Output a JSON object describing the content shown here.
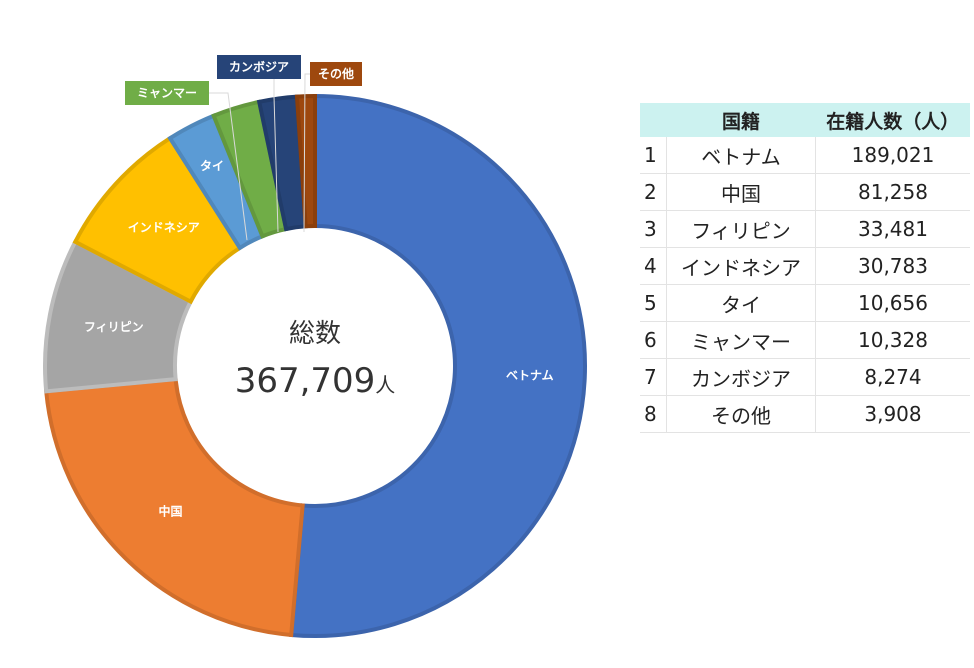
{
  "chart_data": {
    "type": "pie",
    "variant": "donut",
    "categories": [
      "ベトナム",
      "中国",
      "フィリピン",
      "インドネシア",
      "タイ",
      "ミャンマー",
      "カンボジア",
      "その他"
    ],
    "values": [
      189021,
      81258,
      33481,
      30783,
      10656,
      10328,
      8274,
      3908
    ],
    "colors": [
      "#4472c4",
      "#ed7d31",
      "#a5a5a5",
      "#ffc000",
      "#5b9bd5",
      "#70ad47",
      "#264478",
      "#9e480e"
    ],
    "center_title": "総数",
    "center_total": "367,709",
    "center_unit": "人",
    "callout_labels": [
      "ミャンマー",
      "カンボジア",
      "その他"
    ],
    "inside_labels": [
      "ベトナム",
      "中国",
      "フィリピン",
      "インドネシア",
      "タイ"
    ]
  },
  "table": {
    "headers": [
      "",
      "国籍",
      "在籍人数（人）"
    ],
    "rows": [
      {
        "rank": "1",
        "name": "ベトナム",
        "count": "189,021"
      },
      {
        "rank": "2",
        "name": "中国",
        "count": "81,258"
      },
      {
        "rank": "3",
        "name": "フィリピン",
        "count": "33,481"
      },
      {
        "rank": "4",
        "name": "インドネシア",
        "count": "30,783"
      },
      {
        "rank": "5",
        "name": "タイ",
        "count": "10,656"
      },
      {
        "rank": "6",
        "name": "ミャンマー",
        "count": "10,328"
      },
      {
        "rank": "7",
        "name": "カンボジア",
        "count": "8,274"
      },
      {
        "rank": "8",
        "name": "その他",
        "count": "3,908"
      }
    ]
  }
}
